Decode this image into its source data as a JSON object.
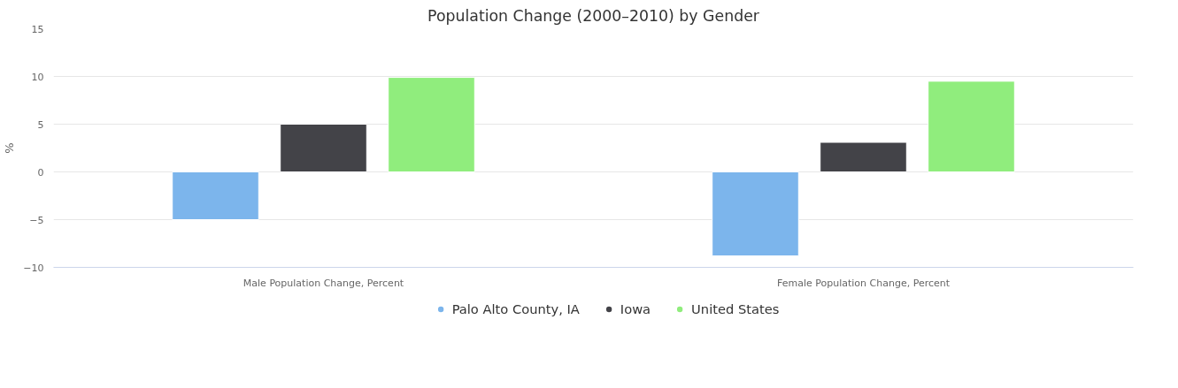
{
  "chart_data": {
    "type": "bar",
    "title": "Population Change (2000–2010) by Gender",
    "ylabel": "%",
    "categories": [
      "Male Population Change, Percent",
      "Female Population Change, Percent"
    ],
    "series": [
      {
        "name": "Palo Alto County, IA",
        "color": "#7cb5ec",
        "values": [
          -5.0,
          -8.8
        ]
      },
      {
        "name": "Iowa",
        "color": "#434348",
        "values": [
          5.0,
          3.1
        ]
      },
      {
        "name": "United States",
        "color": "#90ed7d",
        "values": [
          9.9,
          9.5
        ]
      }
    ],
    "ylim": [
      -10,
      15
    ],
    "yticks": [
      -10,
      -5,
      0,
      5,
      10,
      15
    ],
    "grid": "y",
    "legend": "bottom"
  }
}
